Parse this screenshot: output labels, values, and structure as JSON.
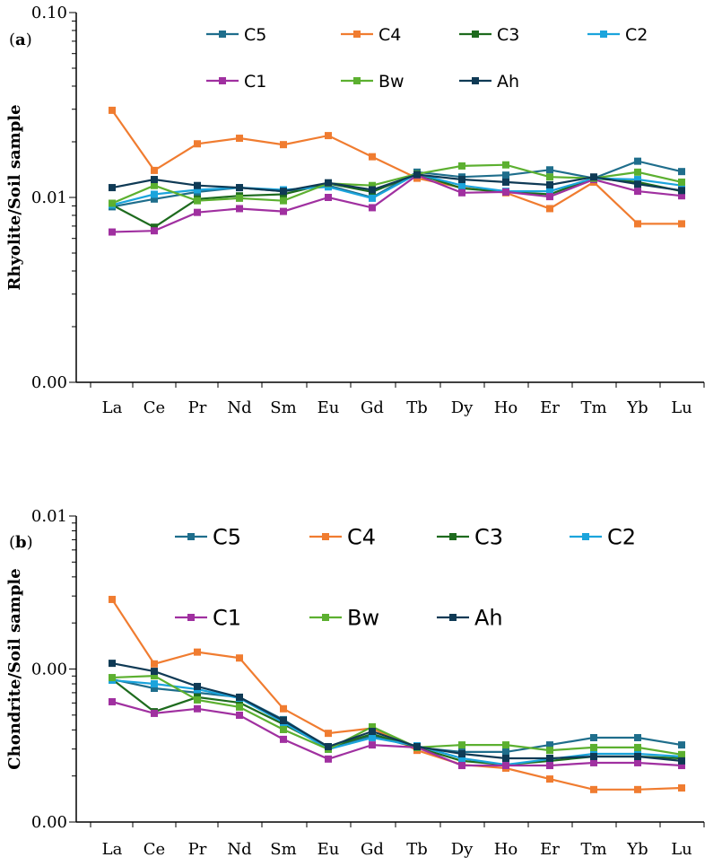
{
  "chart_data": [
    {
      "type": "line",
      "panel_label": "a",
      "ylabel": "Rhyolite/Soil sample",
      "yscale": "log",
      "ylim": [
        0.001,
        0.1
      ],
      "ytick_values": [
        0.1,
        0.01,
        0.001
      ],
      "ytick_labels": [
        "0.10",
        "0.01",
        "0.00"
      ],
      "categories": [
        "La",
        "Ce",
        "Pr",
        "Nd",
        "Sm",
        "Eu",
        "Gd",
        "Tb",
        "Dy",
        "Ho",
        "Er",
        "Tm",
        "Yb",
        "Lu"
      ],
      "legend_placement": "top",
      "series": [
        {
          "name": "C5",
          "color": "#1f6e8c",
          "values": [
            0.0089,
            0.0098,
            0.0107,
            0.0113,
            0.0108,
            0.0116,
            0.01,
            0.0137,
            0.0129,
            0.0132,
            0.0141,
            0.0127,
            0.0157,
            0.0138
          ]
        },
        {
          "name": "C4",
          "color": "#f07c30",
          "values": [
            0.0296,
            0.014,
            0.0195,
            0.0209,
            0.0193,
            0.0216,
            0.0166,
            0.0127,
            0.0113,
            0.0106,
            0.0087,
            0.0121,
            0.0072,
            0.0072
          ]
        },
        {
          "name": "C3",
          "color": "#1e6b1e",
          "values": [
            0.0091,
            0.0069,
            0.0098,
            0.0102,
            0.0104,
            0.0119,
            0.0107,
            0.0134,
            0.0112,
            0.0107,
            0.0104,
            0.0127,
            0.0121,
            0.0108
          ]
        },
        {
          "name": "C2",
          "color": "#1ba4dc",
          "values": [
            0.0091,
            0.0104,
            0.011,
            0.0113,
            0.011,
            0.0114,
            0.0099,
            0.0134,
            0.0116,
            0.0108,
            0.0108,
            0.0127,
            0.0125,
            0.0116
          ]
        },
        {
          "name": "C1",
          "color": "#a030a0",
          "values": [
            0.0065,
            0.0066,
            0.0083,
            0.0087,
            0.0084,
            0.01,
            0.0088,
            0.0132,
            0.0106,
            0.0107,
            0.0101,
            0.0125,
            0.0108,
            0.0102
          ]
        },
        {
          "name": "Bw",
          "color": "#5cb030",
          "values": [
            0.0093,
            0.0116,
            0.0096,
            0.0099,
            0.0096,
            0.0119,
            0.0116,
            0.0134,
            0.0148,
            0.015,
            0.0129,
            0.0127,
            0.0137,
            0.0121
          ]
        },
        {
          "name": "Ah",
          "color": "#0f3a55",
          "values": [
            0.0113,
            0.0125,
            0.0116,
            0.0113,
            0.0108,
            0.012,
            0.011,
            0.0133,
            0.0125,
            0.0121,
            0.0117,
            0.0129,
            0.0118,
            0.0109
          ]
        }
      ]
    },
    {
      "type": "line",
      "panel_label": "b",
      "ylabel": "Chondrite/Soil sample",
      "yscale": "log",
      "ylim": [
        0.0001,
        0.01
      ],
      "ytick_values": [
        0.01,
        0.001,
        0.0001
      ],
      "ytick_labels": [
        "0.01",
        "0.00",
        "0.00"
      ],
      "categories": [
        "La",
        "Ce",
        "Pr",
        "Nd",
        "Sm",
        "Eu",
        "Gd",
        "Tb",
        "Dy",
        "Ho",
        "Er",
        "Tm",
        "Yb",
        "Lu"
      ],
      "legend_placement": "top",
      "series": [
        {
          "name": "C5",
          "color": "#1f6e8c",
          "values": [
            0.000857,
            0.000748,
            0.0007,
            0.000654,
            0.000467,
            0.000307,
            0.000366,
            0.000307,
            0.000287,
            0.000287,
            0.000319,
            0.000356,
            0.000356,
            0.000319
          ]
        },
        {
          "name": "C4",
          "color": "#f07c30",
          "values": [
            0.00285,
            0.00108,
            0.00129,
            0.00118,
            0.00055,
            0.00038,
            0.00041,
            0.000294,
            0.000237,
            0.000225,
            0.000191,
            0.000163,
            0.000163,
            0.000167
          ]
        },
        {
          "name": "C3",
          "color": "#1e6b1e",
          "values": [
            0.000857,
            0.000526,
            0.000654,
            0.000603,
            0.000436,
            0.000307,
            0.000376,
            0.000307,
            0.000251,
            0.000237,
            0.000251,
            0.000268,
            0.000268,
            0.000261
          ]
        },
        {
          "name": "C2",
          "color": "#1ba4dc",
          "values": [
            0.000845,
            0.0008,
            0.000738,
            0.000645,
            0.000448,
            0.000299,
            0.000356,
            0.000315,
            0.000261,
            0.000237,
            0.000258,
            0.000279,
            0.000279,
            0.000268
          ]
        },
        {
          "name": "C1",
          "color": "#a030a0",
          "values": [
            0.000611,
            0.000513,
            0.00055,
            0.000499,
            0.000347,
            0.000258,
            0.000319,
            0.000307,
            0.000234,
            0.000234,
            0.000234,
            0.000244,
            0.000244,
            0.000234
          ]
        },
        {
          "name": "Bw",
          "color": "#5cb030",
          "values": [
            0.000879,
            0.000902,
            0.000628,
            0.000564,
            0.000402,
            0.000299,
            0.000419,
            0.000307,
            0.000319,
            0.000319,
            0.000294,
            0.000307,
            0.000307,
            0.000276
          ]
        },
        {
          "name": "Ah",
          "color": "#0f3a55",
          "values": [
            0.00109,
            0.000966,
            0.000769,
            0.000654,
            0.00046,
            0.000311,
            0.000391,
            0.000311,
            0.000279,
            0.000261,
            0.000261,
            0.000268,
            0.000268,
            0.000251
          ]
        }
      ]
    }
  ]
}
